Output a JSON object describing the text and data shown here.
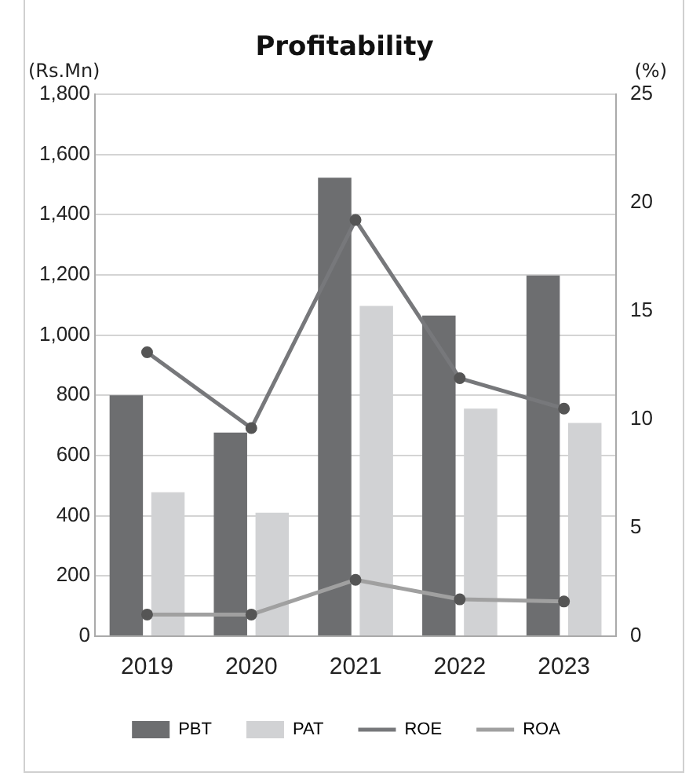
{
  "chart_data": {
    "type": "bar",
    "title": "Profitability",
    "ylabel": "(Rs.Mn)",
    "y2label": "(%)",
    "categories": [
      "2019",
      "2020",
      "2021",
      "2022",
      "2023"
    ],
    "series": [
      {
        "name": "PBT",
        "color": "#6d6e70",
        "values": [
          800,
          676,
          1523,
          1065,
          1198
        ]
      },
      {
        "name": "PAT",
        "color": "#d1d2d4",
        "values": [
          478,
          410,
          1097,
          756,
          708
        ]
      },
      {
        "name": "ROE",
        "type": "line",
        "axis": "y2",
        "color": "#77787b",
        "values": [
          13.1,
          9.6,
          19.2,
          11.9,
          10.5
        ]
      },
      {
        "name": "ROA",
        "type": "line",
        "axis": "y2",
        "color": "#a0a0a0",
        "values": [
          1.0,
          1.0,
          2.6,
          1.7,
          1.6
        ]
      }
    ],
    "ylim": [
      0,
      1800
    ],
    "yticks": [
      {
        "value": 0,
        "label": "0"
      },
      {
        "value": 200,
        "label": "200"
      },
      {
        "value": 400,
        "label": "400"
      },
      {
        "value": 600,
        "label": "600"
      },
      {
        "value": 800,
        "label": "800"
      },
      {
        "value": 1000,
        "label": "1,000"
      },
      {
        "value": 1200,
        "label": "1,200"
      },
      {
        "value": 1400,
        "label": "1,400"
      },
      {
        "value": 1600,
        "label": "1,600"
      },
      {
        "value": 1800,
        "label": "1,800"
      }
    ],
    "y2lim": [
      0,
      25
    ],
    "y2ticks": [
      0,
      5,
      10,
      15,
      20,
      25
    ],
    "grid": "y",
    "legend": "bottom",
    "marker": "circle",
    "line_style": "solid"
  }
}
